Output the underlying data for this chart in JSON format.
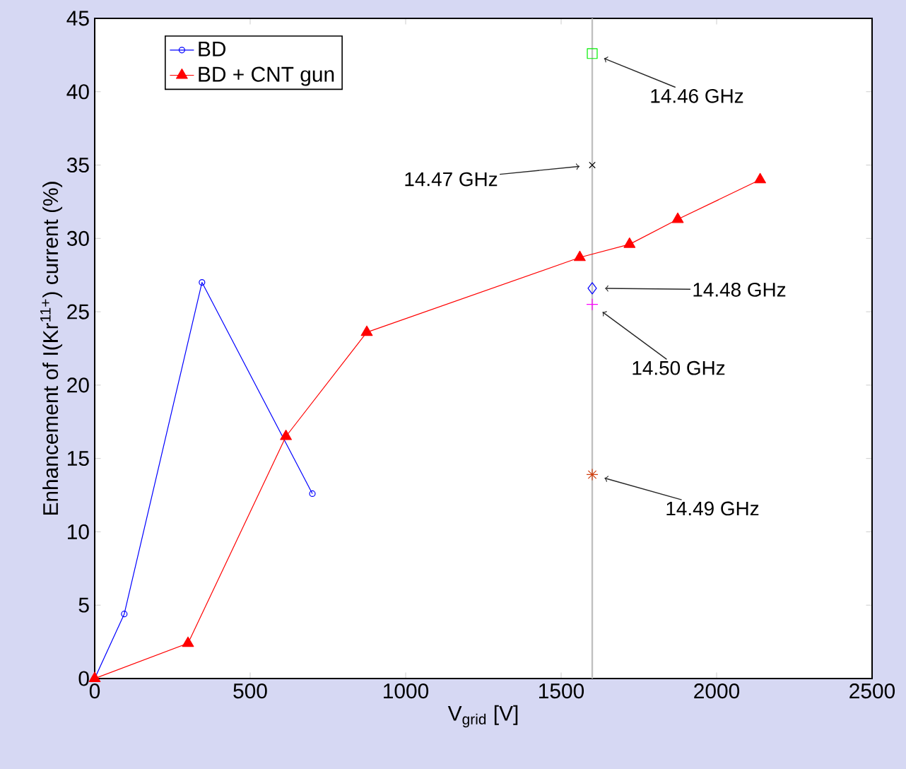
{
  "chart_data": {
    "type": "line",
    "xlabel": "V$_{grid}$ [V]",
    "ylabel": "Enhancement of I(Kr$^{11+}$) current (%)",
    "xlim": [
      0,
      2500
    ],
    "xticks": [
      0,
      500,
      1000,
      1500,
      2000,
      2500
    ],
    "ylim": [
      0,
      45
    ],
    "yticks": [
      0,
      5,
      10,
      15,
      20,
      25,
      30,
      35,
      40,
      45
    ],
    "grid": false,
    "legend": "top left",
    "series": [
      {
        "name": "BD",
        "marker": "circle",
        "color": "#0000ff",
        "x": [
          0,
          95,
          345,
          700
        ],
        "values": [
          0,
          4.4,
          27.0,
          12.6
        ]
      },
      {
        "name": "BD + CNT gun",
        "marker": "triangle",
        "color": "#ff0000",
        "x": [
          0,
          300,
          615,
          875,
          1560,
          1720,
          1875,
          2140
        ],
        "values": [
          0,
          2.4,
          16.5,
          23.6,
          28.7,
          29.6,
          31.3,
          34.0
        ]
      },
      {
        "type": "scatter",
        "marker": "square",
        "color": "#00ee00",
        "x": [
          1600
        ],
        "values": [
          42.6
        ]
      },
      {
        "type": "scatter",
        "marker": "cross",
        "color": "#000000",
        "x": [
          1600
        ],
        "values": [
          35.0
        ]
      },
      {
        "type": "scatter",
        "marker": "diamond",
        "color": "#0000ff",
        "x": [
          1600
        ],
        "values": [
          26.6
        ]
      },
      {
        "type": "scatter",
        "marker": "plus",
        "color": "#ff00ff",
        "x": [
          1600
        ],
        "values": [
          25.5
        ]
      },
      {
        "type": "scatter",
        "color": "#d04010",
        "x": [
          1600
        ],
        "values": [
          13.9
        ]
      }
    ],
    "ref_lines": [
      {
        "axis": "x",
        "value": 1600,
        "color": "#c0c0c0"
      }
    ],
    "annotations": [
      "14.46 GHz",
      "14.47 GHz",
      "14.48 GHz",
      "14.50 GHz",
      "14.49 GHz"
    ]
  }
}
